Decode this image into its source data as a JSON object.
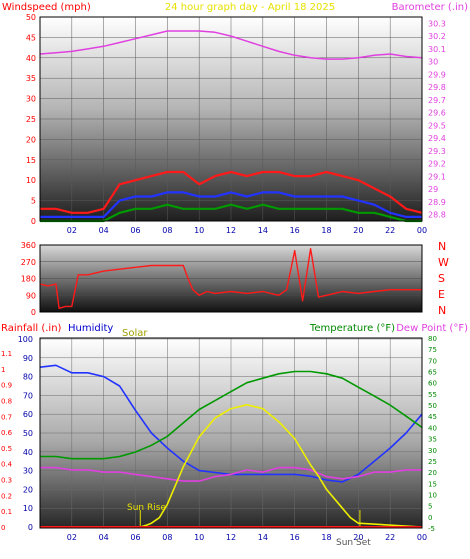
{
  "chart_data": [
    {
      "type": "line",
      "title": "24 hour graph day - April 18 2025",
      "y_left_label": "Windspeed (mph)",
      "y_right_label": "Barometer (.in)",
      "x_ticks": [
        "02",
        "04",
        "06",
        "08",
        "10",
        "12",
        "14",
        "16",
        "18",
        "20",
        "22",
        "00"
      ],
      "y_left_ticks": [
        0,
        5,
        10,
        15,
        20,
        25,
        30,
        35,
        40,
        45,
        50
      ],
      "y_right_ticks": [
        "28.8",
        "28.9",
        "29",
        "29.1",
        "29.2",
        "29.3",
        "29.4",
        "29.5",
        "29.6",
        "29.7",
        "29.8",
        "29.9",
        "30",
        "30.1",
        "30.2",
        "30.3"
      ],
      "ylim_left": [
        0,
        50
      ],
      "ylim_right": [
        28.75,
        30.35
      ],
      "xlim": [
        0,
        24
      ],
      "series": [
        {
          "name": "Barometer (.in)",
          "axis": "right",
          "color": "#e040e0",
          "x": [
            0,
            1,
            2,
            3,
            4,
            5,
            6,
            7,
            8,
            9,
            10,
            11,
            12,
            13,
            14,
            15,
            16,
            17,
            18,
            19,
            20,
            21,
            22,
            23,
            24
          ],
          "values": [
            30.06,
            30.07,
            30.08,
            30.1,
            30.12,
            30.15,
            30.18,
            30.21,
            30.24,
            30.24,
            30.24,
            30.23,
            30.2,
            30.16,
            30.12,
            30.08,
            30.05,
            30.03,
            30.02,
            30.02,
            30.03,
            30.05,
            30.06,
            30.04,
            30.03
          ]
        },
        {
          "name": "",
          "axis": "left",
          "color": "#ff1a1a",
          "x": [
            0,
            1,
            2,
            3,
            4,
            5,
            6,
            7,
            8,
            9,
            10,
            11,
            12,
            13,
            14,
            15,
            16,
            17,
            18,
            19,
            20,
            21,
            22,
            23,
            24
          ],
          "values": [
            3,
            3,
            2,
            2,
            3,
            9,
            10,
            11,
            12,
            12,
            9,
            11,
            12,
            11,
            12,
            12,
            11,
            11,
            12,
            11,
            10,
            8,
            6,
            3,
            2
          ]
        },
        {
          "name": "",
          "axis": "left",
          "color": "#2233ff",
          "x": [
            0,
            1,
            2,
            3,
            4,
            5,
            6,
            7,
            8,
            9,
            10,
            11,
            12,
            13,
            14,
            15,
            16,
            17,
            18,
            19,
            20,
            21,
            22,
            23,
            24
          ],
          "values": [
            1,
            1,
            1,
            1,
            1,
            5,
            6,
            6,
            7,
            7,
            6,
            6,
            7,
            6,
            7,
            7,
            6,
            6,
            6,
            6,
            5,
            4,
            2,
            1,
            1
          ]
        },
        {
          "name": "",
          "axis": "left",
          "color": "#009900",
          "x": [
            0,
            1,
            2,
            3,
            4,
            5,
            6,
            7,
            8,
            9,
            10,
            11,
            12,
            13,
            14,
            15,
            16,
            17,
            18,
            19,
            20,
            21,
            22,
            23,
            24
          ],
          "values": [
            0,
            0,
            0,
            0,
            0,
            2,
            3,
            3,
            4,
            3,
            3,
            3,
            4,
            3,
            4,
            3,
            3,
            3,
            3,
            3,
            2,
            2,
            1,
            0,
            0
          ]
        }
      ]
    },
    {
      "type": "scatter",
      "title": "",
      "y_ticks": [
        0,
        90,
        180,
        270,
        360
      ],
      "ylim": [
        0,
        360
      ],
      "xlim": [
        0,
        24
      ],
      "direction_labels": [
        "N",
        "W",
        "S",
        "E",
        "N"
      ],
      "series": [
        {
          "name": "",
          "color": "#ff1a1a",
          "x": [
            0,
            0.5,
            1,
            1.2,
            1.6,
            2,
            2.4,
            3,
            4,
            5,
            6,
            7,
            8,
            9,
            9.3,
            9.6,
            10,
            10.5,
            11,
            12,
            13,
            14,
            15,
            15.5,
            16,
            16.5,
            17,
            17.5,
            18,
            18.5,
            19,
            20,
            21,
            22,
            23,
            24
          ],
          "values": [
            150,
            140,
            150,
            20,
            30,
            30,
            200,
            200,
            220,
            230,
            240,
            250,
            250,
            250,
            180,
            120,
            90,
            110,
            100,
            110,
            100,
            110,
            90,
            120,
            330,
            60,
            340,
            80,
            90,
            100,
            110,
            100,
            110,
            120,
            120,
            120
          ]
        }
      ]
    },
    {
      "type": "line",
      "title": "",
      "y_left_label": "Rainfall (.in)",
      "humidity_label": "Humidity",
      "solar_label": "Solar",
      "y_right_label": "Temperature (°F)",
      "dewpoint_label": "Dew Point (°F)",
      "x_ticks": [
        "02",
        "04",
        "06",
        "08",
        "10",
        "12",
        "14",
        "16",
        "18",
        "20",
        "22",
        "00"
      ],
      "sun_rise_label": "Sun Rise",
      "sun_set_label": "Sun Set",
      "y_rain_ticks": [
        "0",
        "0.1",
        "0.2",
        "0.3",
        "0.4",
        "0.5",
        "0.6",
        "0.7",
        "0.8",
        "0.9",
        "1",
        "1.1"
      ],
      "y_humidity_ticks": [
        0,
        10,
        20,
        30,
        40,
        50,
        60,
        70,
        80,
        90,
        100
      ],
      "y_temp_ticks": [
        -5,
        0,
        5,
        10,
        15,
        20,
        25,
        30,
        35,
        40,
        45,
        50,
        55,
        60,
        65,
        70,
        75,
        80
      ],
      "ylim_humidity": [
        0,
        100
      ],
      "ylim_temp": [
        -5,
        80
      ],
      "xlim": [
        0,
        24
      ],
      "series": [
        {
          "name": "Humidity",
          "axis": "humidity",
          "color": "#2233ff",
          "x": [
            0,
            1,
            2,
            3,
            4,
            5,
            6,
            7,
            8,
            9,
            10,
            11,
            12,
            13,
            14,
            15,
            16,
            17,
            18,
            19,
            20,
            21,
            22,
            23,
            24
          ],
          "values": [
            85,
            86,
            82,
            82,
            80,
            75,
            62,
            50,
            42,
            35,
            30,
            29,
            28,
            28,
            28,
            28,
            28,
            27,
            25,
            24,
            28,
            35,
            42,
            50,
            60
          ]
        },
        {
          "name": "Temperature (°F)",
          "axis": "temp",
          "color": "#009900",
          "x": [
            0,
            1,
            2,
            3,
            4,
            5,
            6,
            7,
            8,
            9,
            10,
            11,
            12,
            13,
            14,
            15,
            16,
            17,
            18,
            19,
            20,
            21,
            22,
            23,
            24
          ],
          "values": [
            27,
            27,
            26,
            26,
            26,
            27,
            29,
            32,
            36,
            42,
            48,
            52,
            56,
            60,
            62,
            64,
            65,
            65,
            64,
            62,
            58,
            54,
            50,
            45,
            40
          ]
        },
        {
          "name": "Dew Point (°F)",
          "axis": "temp",
          "color": "#e040e0",
          "x": [
            0,
            1,
            2,
            3,
            4,
            5,
            6,
            7,
            8,
            9,
            10,
            11,
            12,
            13,
            14,
            15,
            16,
            17,
            18,
            19,
            20,
            21,
            22,
            23,
            24
          ],
          "values": [
            22,
            22,
            21,
            21,
            20,
            20,
            19,
            18,
            17,
            16,
            16,
            18,
            19,
            21,
            20,
            22,
            22,
            21,
            18,
            17,
            18,
            20,
            20,
            21,
            21
          ]
        },
        {
          "name": "Solar",
          "axis": "humidity",
          "color": "#eeee00",
          "x": [
            0,
            6.3,
            6.7,
            7,
            7.5,
            8,
            9,
            10,
            11,
            12,
            13,
            14,
            15,
            16,
            17,
            17.5,
            18,
            18.5,
            19,
            19.5,
            20,
            24
          ],
          "values": [
            0,
            0,
            1,
            2,
            5,
            12,
            32,
            48,
            58,
            63,
            65,
            63,
            56,
            47,
            33,
            27,
            20,
            15,
            10,
            5,
            2,
            0
          ]
        },
        {
          "name": "Rainfall (.in)",
          "axis": "humidity",
          "color": "#ff1a1a",
          "x": [
            0,
            24
          ],
          "values": [
            0,
            0
          ]
        }
      ]
    }
  ]
}
